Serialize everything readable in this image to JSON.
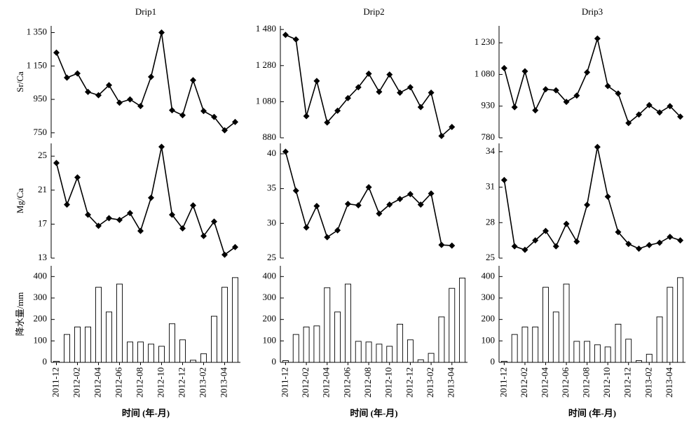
{
  "chart_data": [
    {
      "type": "panels",
      "title": "Drip1",
      "xlabel": "时间 (年-月)",
      "categories": [
        "2011-12",
        null,
        "2012-02",
        null,
        "2012-04",
        null,
        "2012-06",
        null,
        "2012-08",
        null,
        "2012-10",
        null,
        "2012-12",
        null,
        "2013-02",
        null,
        "2013-04",
        null
      ],
      "panels": [
        {
          "type": "line",
          "ylabel": "Sr/Ca",
          "ylim": [
            720,
            1390
          ],
          "yticks": [
            750,
            950,
            {
              "value": 1150,
              "label": "1 150"
            },
            {
              "value": 1350,
              "label": "1 350"
            }
          ],
          "values": [
            1230,
            1080,
            1105,
            995,
            975,
            1035,
            930,
            950,
            910,
            1085,
            1350,
            885,
            855,
            1065,
            880,
            845,
            765,
            815
          ]
        },
        {
          "type": "line",
          "ylabel": "Mg/Ca",
          "ylim": [
            13,
            26.5
          ],
          "yticks": [
            13,
            17,
            21,
            25
          ],
          "values": [
            24.2,
            19.3,
            22.5,
            18.1,
            16.8,
            17.7,
            17.5,
            18.3,
            16.2,
            20.1,
            26.1,
            18.1,
            16.5,
            19.2,
            15.6,
            17.3,
            13.4,
            14.3
          ]
        },
        {
          "type": "bar",
          "ylabel": "降水量/mm",
          "ylim": [
            0,
            450
          ],
          "yticks": [
            0,
            100,
            200,
            300,
            400
          ],
          "values": [
            5,
            130,
            165,
            165,
            350,
            235,
            365,
            95,
            95,
            85,
            75,
            180,
            105,
            10,
            40,
            215,
            350,
            395
          ]
        }
      ]
    },
    {
      "type": "panels",
      "title": "Drip2",
      "xlabel": "时间 (年-月)",
      "categories": [
        "2011-12",
        null,
        "2012-02",
        null,
        "2012-04",
        null,
        "2012-06",
        null,
        "2012-08",
        null,
        "2012-10",
        null,
        "2012-12",
        null,
        "2013-02",
        null,
        "2013-04",
        null
      ],
      "panels": [
        {
          "type": "line",
          "ylim": [
            880,
            1500
          ],
          "yticks": [
            880,
            {
              "value": 1080,
              "label": "1 080"
            },
            {
              "value": 1280,
              "label": "1 280"
            },
            {
              "value": 1480,
              "label": "1 480"
            }
          ],
          "values": [
            1450,
            1425,
            1000,
            1195,
            965,
            1030,
            1100,
            1160,
            1235,
            1135,
            1230,
            1130,
            1160,
            1050,
            1130,
            890,
            940,
            null
          ]
        },
        {
          "type": "line",
          "ylim": [
            25,
            41.5
          ],
          "yticks": [
            25,
            30,
            35,
            40
          ],
          "values": [
            40.3,
            34.7,
            29.4,
            32.5,
            28,
            29,
            32.8,
            32.6,
            35.2,
            31.4,
            32.7,
            33.5,
            34.2,
            32.7,
            34.3,
            26.9,
            26.8,
            null
          ]
        },
        {
          "type": "bar",
          "ylim": [
            0,
            450
          ],
          "yticks": [
            0,
            100,
            200,
            300,
            400
          ],
          "values": [
            8,
            130,
            165,
            170,
            348,
            235,
            365,
            98,
            95,
            85,
            75,
            178,
            105,
            12,
            42,
            212,
            345,
            393
          ]
        }
      ]
    },
    {
      "type": "panels",
      "title": "Drip3",
      "xlabel": "时间 (年-月)",
      "categories": [
        "2011-12",
        null,
        "2012-02",
        null,
        "2012-04",
        null,
        "2012-06",
        null,
        "2012-08",
        null,
        "2012-10",
        null,
        "2012-12",
        null,
        "2013-02",
        null,
        "2013-04",
        null
      ],
      "panels": [
        {
          "type": "line",
          "ylim": [
            780,
            1310
          ],
          "yticks": [
            780,
            930,
            {
              "value": 1080,
              "label": "1 080"
            },
            {
              "value": 1230,
              "label": "1 230"
            }
          ],
          "values": [
            1110,
            925,
            1095,
            910,
            1010,
            1005,
            950,
            980,
            1090,
            1250,
            1025,
            990,
            850,
            890,
            935,
            900,
            930,
            880
          ]
        },
        {
          "type": "line",
          "ylim": [
            25,
            34.7
          ],
          "yticks": [
            25,
            28,
            31,
            34
          ],
          "values": [
            31.6,
            26,
            25.7,
            26.5,
            27.3,
            26,
            27.9,
            26.4,
            29.5,
            34.4,
            30.2,
            27.2,
            26.2,
            25.8,
            26.1,
            26.3,
            26.8,
            26.5
          ]
        },
        {
          "type": "bar",
          "ylim": [
            0,
            450
          ],
          "yticks": [
            0,
            100,
            200,
            300,
            400
          ],
          "values": [
            5,
            130,
            165,
            165,
            350,
            235,
            365,
            98,
            98,
            82,
            72,
            178,
            108,
            8,
            38,
            212,
            350,
            395
          ]
        }
      ]
    }
  ]
}
